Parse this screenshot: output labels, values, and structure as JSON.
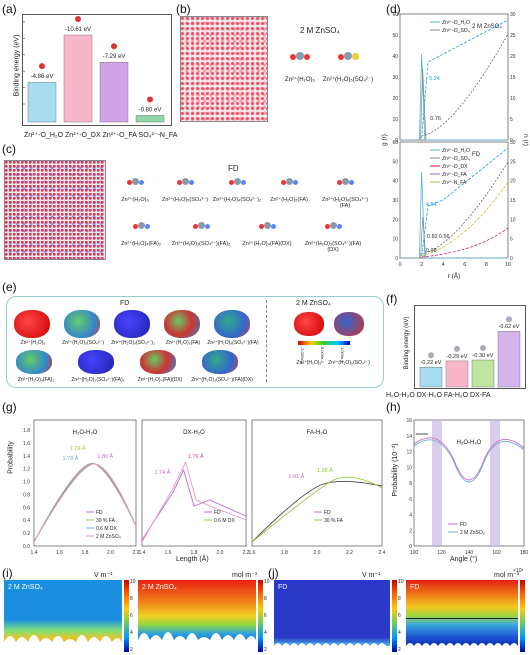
{
  "panels": {
    "a": {
      "label": "(a)",
      "ylabel": "Binding energy (eV)",
      "caption": "Zn²⁺-O_H₂O Zn²⁺-O_DX Zn²⁺-O_FA SO₄²⁻-N_FA",
      "bars": [
        {
          "value": -4.86,
          "label": "-4.86 eV",
          "color": "#a6dcef"
        },
        {
          "value": -10.61,
          "label": "-10.61 eV",
          "color": "#f7b7c9"
        },
        {
          "value": -7.29,
          "label": "-7.29 eV",
          "color": "#cfa3e6"
        },
        {
          "value": -0.8,
          "label": "-0.80 eV",
          "color": "#8fd6a8"
        }
      ]
    },
    "b": {
      "label": "(b)",
      "title": "2 M ZnSO₄",
      "species": [
        "Zn²⁺(H₂O)₆",
        "Zn²⁺(H₂O)₅(SO₄²⁻)"
      ]
    },
    "c": {
      "label": "(c)",
      "title": "FD",
      "species": [
        "Zn²⁺(H₂O)₆",
        "Zn²⁺(H₂O)₅(SO₄²⁻)",
        "Zn²⁺(H₂O)₄(SO₄²⁻)₂",
        "Zn²⁺(H₂O)₅(FA)",
        "Zn²⁺(H₂O)₄(SO₄²⁻)(FA)",
        "Zn²⁺(H₂O)₄(FA)₂",
        "Zn²⁺(H₂O)₃(SO₄²⁻)(FA)₂",
        "Zn²⁺(H₂O)₄(FA)(DX)",
        "Zn²⁺(H₂O)₃(SO₄²⁻)(FA)(DX)"
      ]
    },
    "d": {
      "label": "(d)",
      "ylabel_left": "g (r)",
      "ylabel_right": "n (r)",
      "xlabel": "r (Å)",
      "top": {
        "title": "2 M ZnSO₄",
        "legend": [
          "Zn²⁺-O_H₂O",
          "Zn²⁺-O_SO₄"
        ],
        "annotations": [
          "5.24",
          "0.76"
        ]
      },
      "bottom": {
        "title": "FD",
        "legend": [
          "Zn²⁺-O_H₂O",
          "Zn²⁺-O_SO₄",
          "Zn²⁺-O_DX",
          "Zn²⁺-O_FA",
          "Zn²⁺-N_FA"
        ],
        "annotations": [
          "4.54",
          "0.82",
          "0.56",
          "0.08"
        ]
      },
      "xticks": [
        "0",
        "2",
        "4",
        "6",
        "8",
        "10"
      ],
      "g_top_ticks": [
        "0",
        "10",
        "20",
        "30",
        "40",
        "50",
        "60"
      ],
      "g_bot_ticks": [
        "0",
        "10",
        "20",
        "30",
        "40",
        "50",
        "60"
      ],
      "n_ticks": [
        "0",
        "5",
        "10",
        "15",
        "20",
        "25",
        "30"
      ]
    },
    "e": {
      "label": "(e)",
      "title_left": "FD",
      "title_right": "2 M ZnSO₄",
      "row1": [
        "Zn²⁺(H₂O)₆",
        "Zn²⁺(H₂O)₅(SO₄²⁻)",
        "Zn²⁺(H₂O)₄(SO₄²⁻)₂",
        "Zn²⁺(H₂O)₅(FA)",
        "Zn²⁺(H₂O)₄(SO₄²⁻)(FA)"
      ],
      "row2": [
        "Zn²⁺(H₂O)₄(FA)₂",
        "Zn²⁺(H₂O)₃(SO₄²⁻)(FA)₂",
        "Zn²⁺(H₂O)₄(FA)(DX)",
        "Zn²⁺(H₂O)₃(SO₄²⁻)(FA)(DX)"
      ],
      "right": [
        "Zn²⁺(H₂O)₆",
        "Zn²⁺(H₂O)₅(SO₄²⁻)"
      ],
      "colorbar": [
        "-5.000e-2",
        "5.000e-2",
        "1.000e-1"
      ]
    },
    "f": {
      "label": "(f)",
      "ylabel": "Binding energy (eV)",
      "caption": "H₂O-H₂O DX-H₂O FA-H₂O DX-FA",
      "bars": [
        {
          "value": -0.22,
          "label": "-0.22 eV",
          "color": "#a6dcef"
        },
        {
          "value": -0.29,
          "label": "-0.29 eV",
          "color": "#f7b7c9"
        },
        {
          "value": -0.3,
          "label": "-0.30 eV",
          "color": "#bfe6a0"
        },
        {
          "value": -0.62,
          "label": "-0.62 eV",
          "color": "#d6b3ea"
        }
      ]
    },
    "g": {
      "label": "(g)",
      "ylabel": "Probability",
      "xlabel": "Length (Å)",
      "subplots": [
        {
          "title": "H₂O-H₂O",
          "legend": [
            "FD",
            "30 % FA",
            "0.6 M DX",
            "2 M ZnSO₄"
          ],
          "annotations": [
            "1.79 Å",
            "1.78 Å",
            "1.80 Å"
          ],
          "xticks": [
            "1.4",
            "1.6",
            "1.8",
            "2.0",
            "2.2"
          ]
        },
        {
          "title": "DX-H₂O",
          "legend": [
            "FD",
            "0.6 M DX"
          ],
          "annotations": [
            "1.74 Å",
            "1.76 Å"
          ],
          "xticks": [
            "1.4",
            "1.6",
            "1.8",
            "2.0",
            "2.2"
          ]
        },
        {
          "title": "FA-H₂O",
          "legend": [
            "FD",
            "30 % FA"
          ],
          "annotations": [
            "1.91 Å",
            "1.98 Å"
          ],
          "xticks": [
            "1.6",
            "1.8",
            "2.0",
            "2.2",
            "2.4"
          ]
        }
      ],
      "yticks": [
        "0.0",
        "0.2",
        "0.4",
        "0.6",
        "0.8",
        "1.0",
        "1.2",
        "1.4",
        "1.6",
        "1.8"
      ]
    },
    "h": {
      "label": "(h)",
      "title": "H₂O-H₂O",
      "ylabel": "Probability (10⁻³)",
      "xlabel": "Angle (°)",
      "legend": [
        "FD",
        "2 M ZnSO₄"
      ],
      "xticks": [
        "100",
        "120",
        "140",
        "160",
        "180"
      ],
      "yticks": [
        "0",
        "2",
        "4",
        "6",
        "8",
        "10",
        "12",
        "14",
        "16"
      ]
    },
    "i": {
      "label": "(i)",
      "map1_title": "2 M ZnSO₄",
      "map1_unit": "V m⁻¹",
      "map1_ticks": [
        "10",
        "8",
        "6",
        "4",
        "2"
      ],
      "map2_title": "2 M ZnSO₄",
      "map2_unit": "mol m⁻³",
      "map2_ticks": [
        "10",
        "8",
        "6",
        "4",
        "2"
      ]
    },
    "j": {
      "label": "(j)",
      "map1_title": "FD",
      "map1_unit": "V m⁻¹",
      "map1_ticks": [
        "10",
        "8",
        "6",
        "4",
        "2"
      ],
      "map2_title": "FD",
      "map2_unit": "mol m⁻³",
      "map2_ticks": [
        "10",
        "8",
        "6",
        "4",
        "2"
      ],
      "map2_scale": "×10³"
    }
  },
  "chart_data": [
    {
      "type": "bar",
      "title": "",
      "ylabel": "Binding energy (eV)",
      "categories": [
        "Zn²⁺-O_H₂O",
        "Zn²⁺-O_DX",
        "Zn²⁺-O_FA",
        "SO₄²⁻-N_FA"
      ],
      "values": [
        -4.86,
        -10.61,
        -7.29,
        -0.8
      ]
    },
    {
      "type": "bar",
      "title": "",
      "ylabel": "Binding energy (eV)",
      "categories": [
        "H₂O-H₂O",
        "DX-H₂O",
        "FA-H₂O",
        "DX-FA"
      ],
      "values": [
        -0.22,
        -0.29,
        -0.3,
        -0.62
      ]
    }
  ]
}
